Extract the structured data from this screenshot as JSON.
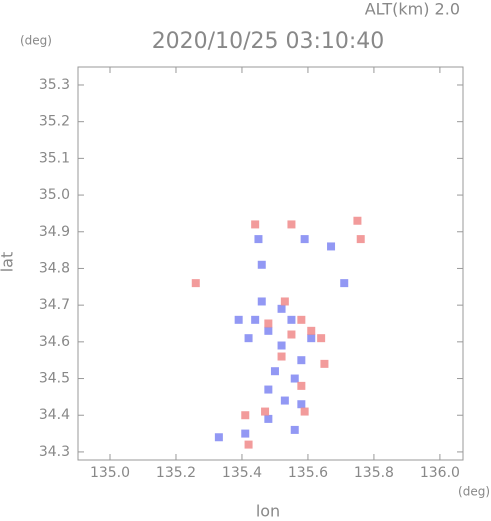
{
  "chart_data": {
    "type": "scatter",
    "title": "2020/10/25 03:10:40",
    "subtitle": "ALT(km) 2.0",
    "xlabel": "lon",
    "ylabel": "lat",
    "xunit": "(deg)",
    "yunit": "(deg)",
    "xlim": [
      134.903,
      136.07
    ],
    "ylim": [
      34.278,
      35.349
    ],
    "xticks": [
      {
        "value": 135,
        "label": "135.0"
      },
      135.2,
      135.4,
      135.6,
      135.8,
      {
        "value": 136,
        "label": "136.0"
      }
    ],
    "yticks": [
      34.3,
      34.4,
      34.5,
      34.6,
      34.7,
      34.8,
      34.9,
      {
        "value": 35,
        "label": "35.0"
      },
      35.1,
      35.2,
      35.3
    ],
    "series": [
      {
        "color": "#7f86f2",
        "x": [
          135.46,
          135.44,
          135.48,
          135.52,
          135.42,
          135.55,
          135.58,
          135.5,
          135.48,
          135.53,
          135.58,
          135.41,
          135.33,
          135.59,
          135.67,
          135.46,
          135.45,
          135.71,
          135.39,
          135.52,
          135.56,
          135.61,
          135.48,
          135.56
        ],
        "values": [
          34.71,
          34.66,
          34.63,
          34.59,
          34.61,
          34.66,
          34.55,
          34.52,
          34.47,
          34.44,
          34.43,
          34.35,
          34.34,
          34.88,
          34.86,
          34.81,
          34.88,
          34.76,
          34.66,
          34.69,
          34.5,
          34.61,
          34.39,
          34.36
        ]
      },
      {
        "color": "#f08a8a",
        "x": [
          135.58,
          135.55,
          135.61,
          135.64,
          135.52,
          135.58,
          135.47,
          135.65,
          135.59,
          135.44,
          135.55,
          135.76,
          135.75,
          135.26,
          135.42,
          135.41,
          135.48,
          135.53
        ],
        "values": [
          34.66,
          34.62,
          34.63,
          34.61,
          34.56,
          34.48,
          34.41,
          34.54,
          34.41,
          34.92,
          34.92,
          34.88,
          34.93,
          34.76,
          34.32,
          34.4,
          34.65,
          34.71
        ]
      }
    ]
  }
}
